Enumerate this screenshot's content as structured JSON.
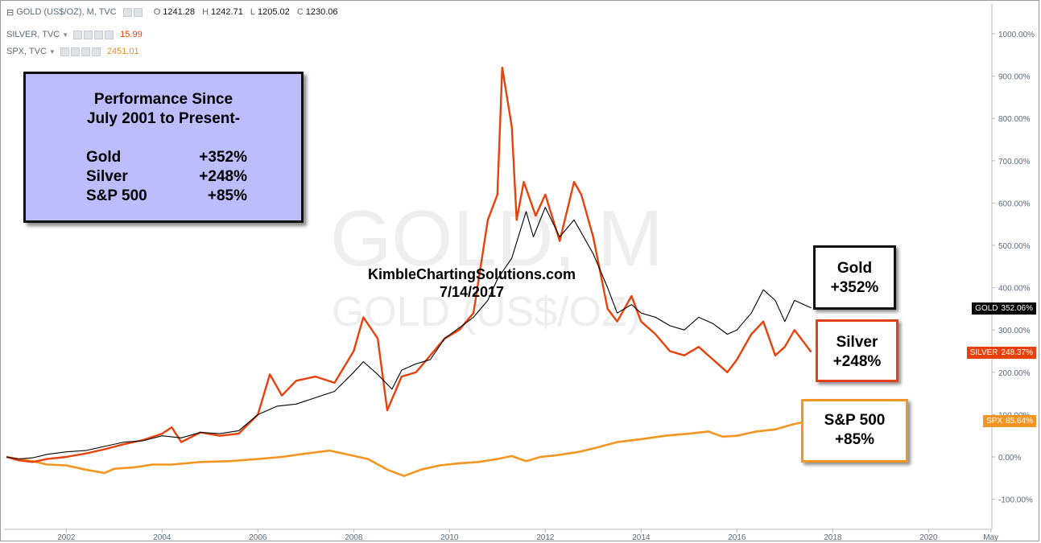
{
  "legend": {
    "rows": [
      {
        "symbol": "⊟",
        "label": "GOLD (US$/OZ), M, TVC",
        "ohlc": [
          {
            "k": "O",
            "v": "1241.28"
          },
          {
            "k": "H",
            "v": "1242.71"
          },
          {
            "k": "L",
            "v": "1205.02"
          },
          {
            "k": "C",
            "v": "1230.06"
          }
        ]
      },
      {
        "label": "SILVER, TVC",
        "value": "15.99"
      },
      {
        "label": "SPX, TVC",
        "value": "2451.01"
      }
    ]
  },
  "watermark": {
    "line1": "GOLD, M",
    "line2": "GOLD (US$/OZ)"
  },
  "perf_box": {
    "title_line1": "Performance Since",
    "title_line2": "July 2001 to Present-",
    "rows": [
      {
        "name": "Gold",
        "value": "+352%"
      },
      {
        "name": "Silver",
        "value": "+248%"
      },
      {
        "name": "S&P 500",
        "value": "+85%"
      }
    ]
  },
  "credit": {
    "site": "KimbleChartingSolutions.com",
    "date": "7/14/2017"
  },
  "callouts": {
    "gold": {
      "name": "Gold",
      "value": "+352%"
    },
    "silver": {
      "name": "Silver",
      "value": "+248%"
    },
    "spx": {
      "name": "S&P 500",
      "value": "+85%"
    }
  },
  "colors": {
    "gold": "#000000",
    "silver": "#e8410b",
    "spx": "#f39520",
    "axis_text": "#5b6a7a"
  },
  "chart_data": {
    "type": "line",
    "title": "",
    "y_unit": "percent change",
    "ylim": [
      -120,
      1060
    ],
    "xlim": [
      2000.7,
      2017.95
    ],
    "x_tick_labels": [
      "2002",
      "2004",
      "2006",
      "2008",
      "2010",
      "2012",
      "2014",
      "2016",
      "2018",
      "2020",
      "May"
    ],
    "y_tick_labels": [
      "1000.00%",
      "900.00%",
      "800.00%",
      "700.00%",
      "600.00%",
      "500.00%",
      "400.00%",
      "300.00%",
      "200.00%",
      "100.00%",
      "0.00%",
      "-100.00%"
    ],
    "y_tick_values": [
      1000,
      900,
      800,
      700,
      600,
      500,
      400,
      300,
      200,
      100,
      0,
      -100
    ],
    "last_value_tags": [
      {
        "series": "GOLD",
        "label": "GOLD",
        "value_text": "352.06%"
      },
      {
        "series": "SILVER",
        "label": "SILVER",
        "value_text": "248.37%"
      },
      {
        "series": "SPX",
        "label": "SPX",
        "value_text": "85.64%"
      }
    ],
    "series": [
      {
        "name": "GOLD",
        "x": [
          2000.75,
          2001.0,
          2001.3,
          2001.6,
          2002.0,
          2002.4,
          2002.8,
          2003.2,
          2003.6,
          2004.0,
          2004.4,
          2004.8,
          2005.2,
          2005.6,
          2006.0,
          2006.4,
          2006.8,
          2007.2,
          2007.6,
          2008.0,
          2008.2,
          2008.5,
          2008.8,
          2009.0,
          2009.3,
          2009.6,
          2009.9,
          2010.2,
          2010.5,
          2010.8,
          2011.0,
          2011.3,
          2011.6,
          2011.75,
          2012.0,
          2012.3,
          2012.6,
          2012.75,
          2013.0,
          2013.3,
          2013.5,
          2013.8,
          2014.0,
          2014.3,
          2014.6,
          2014.9,
          2015.2,
          2015.5,
          2015.8,
          2016.0,
          2016.3,
          2016.55,
          2016.8,
          2017.0,
          2017.2,
          2017.55
        ],
        "values": [
          0,
          -5,
          -2,
          6,
          12,
          15,
          25,
          35,
          38,
          50,
          45,
          58,
          55,
          62,
          100,
          120,
          125,
          140,
          155,
          200,
          225,
          195,
          160,
          205,
          220,
          230,
          280,
          305,
          330,
          370,
          420,
          470,
          580,
          520,
          590,
          520,
          560,
          530,
          480,
          400,
          340,
          360,
          340,
          330,
          310,
          300,
          330,
          315,
          290,
          300,
          340,
          395,
          370,
          320,
          370,
          352
        ]
      },
      {
        "name": "SILVER",
        "x": [
          2000.75,
          2001.0,
          2001.3,
          2001.6,
          2002.0,
          2002.4,
          2002.8,
          2003.2,
          2003.6,
          2004.0,
          2004.2,
          2004.4,
          2004.8,
          2005.2,
          2005.6,
          2006.0,
          2006.25,
          2006.5,
          2006.8,
          2007.2,
          2007.6,
          2008.0,
          2008.2,
          2008.5,
          2008.7,
          2009.0,
          2009.3,
          2009.6,
          2009.9,
          2010.2,
          2010.5,
          2010.8,
          2011.0,
          2011.1,
          2011.3,
          2011.4,
          2011.55,
          2011.8,
          2012.0,
          2012.3,
          2012.6,
          2012.75,
          2013.0,
          2013.3,
          2013.5,
          2013.8,
          2014.0,
          2014.3,
          2014.6,
          2014.9,
          2015.2,
          2015.5,
          2015.8,
          2016.0,
          2016.3,
          2016.55,
          2016.8,
          2017.0,
          2017.2,
          2017.55
        ],
        "values": [
          0,
          -8,
          -12,
          -5,
          0,
          8,
          18,
          30,
          40,
          55,
          70,
          35,
          58,
          50,
          55,
          100,
          195,
          145,
          180,
          190,
          175,
          250,
          330,
          280,
          110,
          190,
          200,
          240,
          280,
          300,
          340,
          560,
          620,
          920,
          780,
          560,
          650,
          570,
          620,
          510,
          650,
          620,
          520,
          350,
          320,
          380,
          320,
          290,
          250,
          240,
          260,
          230,
          200,
          230,
          290,
          320,
          240,
          260,
          300,
          248
        ]
      },
      {
        "name": "SPX",
        "x": [
          2000.75,
          2001.0,
          2001.3,
          2001.6,
          2002.0,
          2002.4,
          2002.8,
          2003.0,
          2003.4,
          2003.8,
          2004.2,
          2004.8,
          2005.4,
          2006.0,
          2006.5,
          2007.0,
          2007.5,
          2007.9,
          2008.3,
          2008.7,
          2009.05,
          2009.4,
          2009.8,
          2010.2,
          2010.6,
          2011.0,
          2011.3,
          2011.6,
          2011.9,
          2012.3,
          2012.7,
          2013.0,
          2013.5,
          2014.0,
          2014.5,
          2015.0,
          2015.4,
          2015.7,
          2016.0,
          2016.4,
          2016.8,
          2017.2,
          2017.55
        ],
        "values": [
          0,
          -5,
          -10,
          -18,
          -20,
          -30,
          -38,
          -28,
          -25,
          -18,
          -18,
          -12,
          -10,
          -5,
          0,
          8,
          15,
          5,
          -5,
          -30,
          -45,
          -30,
          -20,
          -15,
          -12,
          -5,
          2,
          -10,
          0,
          5,
          12,
          20,
          35,
          42,
          50,
          55,
          60,
          48,
          50,
          60,
          65,
          78,
          85.64
        ]
      }
    ]
  }
}
